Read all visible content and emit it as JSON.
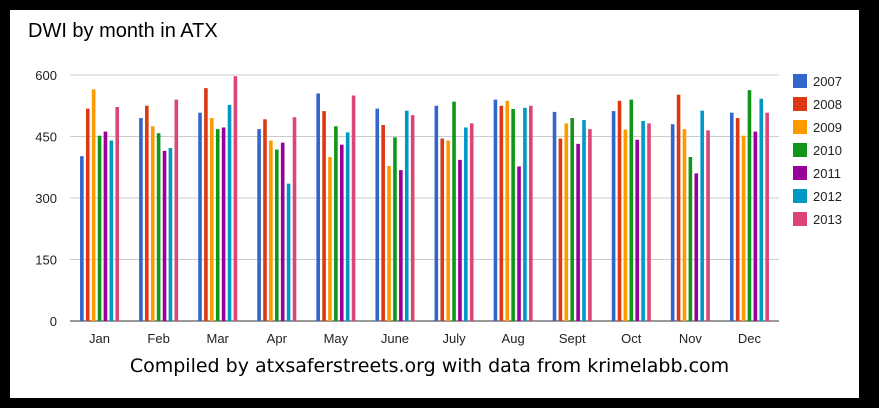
{
  "caption": "Compiled by atxsaferstreets.org with data from krimelabb.com",
  "chart_data": {
    "type": "bar",
    "title": "DWI by month in ATX",
    "xlabel": "",
    "ylabel": "",
    "ylim": [
      0,
      600
    ],
    "yticks": [
      0,
      150,
      300,
      450,
      600
    ],
    "grid": true,
    "legend": "right",
    "categories": [
      "Jan",
      "Feb",
      "Mar",
      "Apr",
      "May",
      "June",
      "July",
      "Aug",
      "Sept",
      "Oct",
      "Nov",
      "Dec"
    ],
    "series": [
      {
        "name": "2007",
        "color": "#3366cc",
        "values": [
          402,
          495,
          508,
          468,
          555,
          518,
          525,
          540,
          510,
          512,
          480,
          508
        ]
      },
      {
        "name": "2008",
        "color": "#dc3912",
        "values": [
          518,
          525,
          568,
          492,
          512,
          478,
          445,
          525,
          445,
          537,
          552,
          495
        ]
      },
      {
        "name": "2009",
        "color": "#ff9900",
        "values": [
          565,
          475,
          495,
          440,
          400,
          378,
          440,
          537,
          482,
          467,
          468,
          452
        ]
      },
      {
        "name": "2010",
        "color": "#109618",
        "values": [
          452,
          458,
          468,
          418,
          475,
          448,
          535,
          517,
          495,
          540,
          400,
          563
        ]
      },
      {
        "name": "2011",
        "color": "#990099",
        "values": [
          462,
          415,
          472,
          435,
          430,
          368,
          393,
          377,
          432,
          442,
          360,
          462
        ]
      },
      {
        "name": "2012",
        "color": "#0099c6",
        "values": [
          440,
          422,
          527,
          335,
          460,
          513,
          472,
          520,
          490,
          488,
          513,
          542
        ]
      },
      {
        "name": "2013",
        "color": "#dd4477",
        "values": [
          522,
          540,
          597,
          497,
          550,
          502,
          482,
          525,
          468,
          482,
          465,
          508
        ]
      }
    ]
  }
}
